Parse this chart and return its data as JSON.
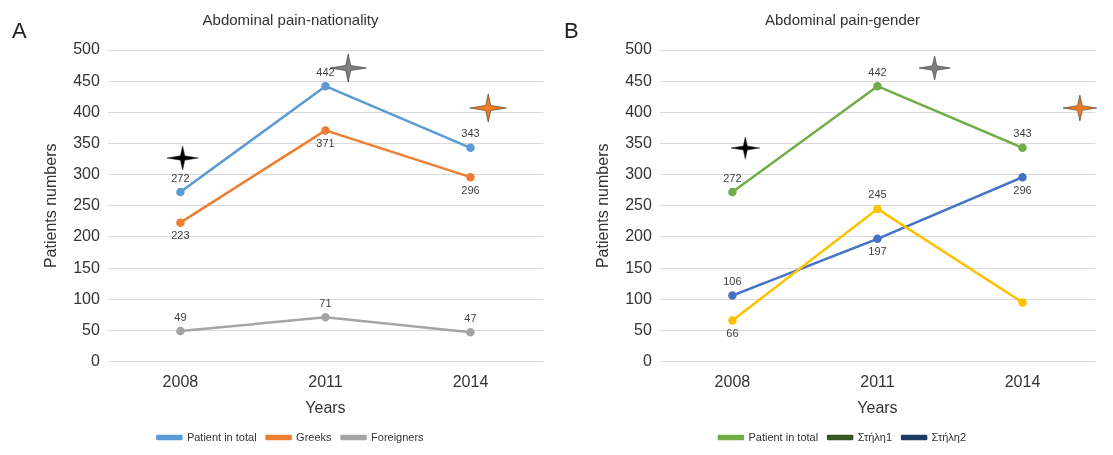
{
  "chart_data": [
    {
      "type": "line",
      "title": "Abdominal pain-nationality",
      "xlabel": "Years",
      "ylabel": "Patients numbers",
      "annotations": [
        "A"
      ],
      "categories": [
        "2008",
        "2011",
        "2014"
      ],
      "series": [
        {
          "name": "Patient in total",
          "color": "#5b9bd5",
          "values": [
            272,
            442,
            343
          ]
        },
        {
          "name": "Greeks",
          "color": "#ed7d31",
          "values": [
            223,
            371,
            296
          ]
        },
        {
          "name": "Foreigners",
          "color": "#a5a5a5",
          "values": [
            49,
            71,
            47
          ]
        }
      ],
      "ylim": [
        0,
        500
      ],
      "yticks": [
        0,
        50,
        100,
        150,
        200,
        250,
        300,
        350,
        400,
        450,
        500
      ],
      "grid": "y",
      "legend": "bottom",
      "marker": "circle",
      "data_labels": true
    },
    {
      "type": "line",
      "title": "Abdominal pain-gender",
      "xlabel": "Years",
      "ylabel": "Patients numbers",
      "annotations": [
        "B"
      ],
      "categories": [
        "2008",
        "2011",
        "2014"
      ],
      "series": [
        {
          "name": "Patient in total",
          "color": "#70ad47",
          "values": [
            272,
            442,
            343
          ],
          "value_labels": [
            "272",
            "442",
            "343"
          ]
        },
        {
          "name": "Στήλη1",
          "color": "#375623",
          "values": [
            null,
            null,
            null
          ]
        },
        {
          "name": "Στήλη2",
          "color": "#1f3864",
          "values": [
            null,
            null,
            null
          ]
        },
        {
          "color": "#ffc000",
          "values": [
            66,
            245,
            95
          ],
          "value_labels": [
            "66",
            "245",
            null
          ]
        },
        {
          "color": "#4472c4",
          "values": [
            106,
            197,
            296
          ],
          "value_labels": [
            "106",
            "197",
            "296"
          ]
        }
      ],
      "ylim": [
        0,
        500
      ],
      "yticks": [
        0,
        50,
        100,
        150,
        200,
        250,
        300,
        350,
        400,
        450,
        500
      ],
      "grid": "y",
      "legend": "bottom",
      "marker": "circle"
    }
  ]
}
